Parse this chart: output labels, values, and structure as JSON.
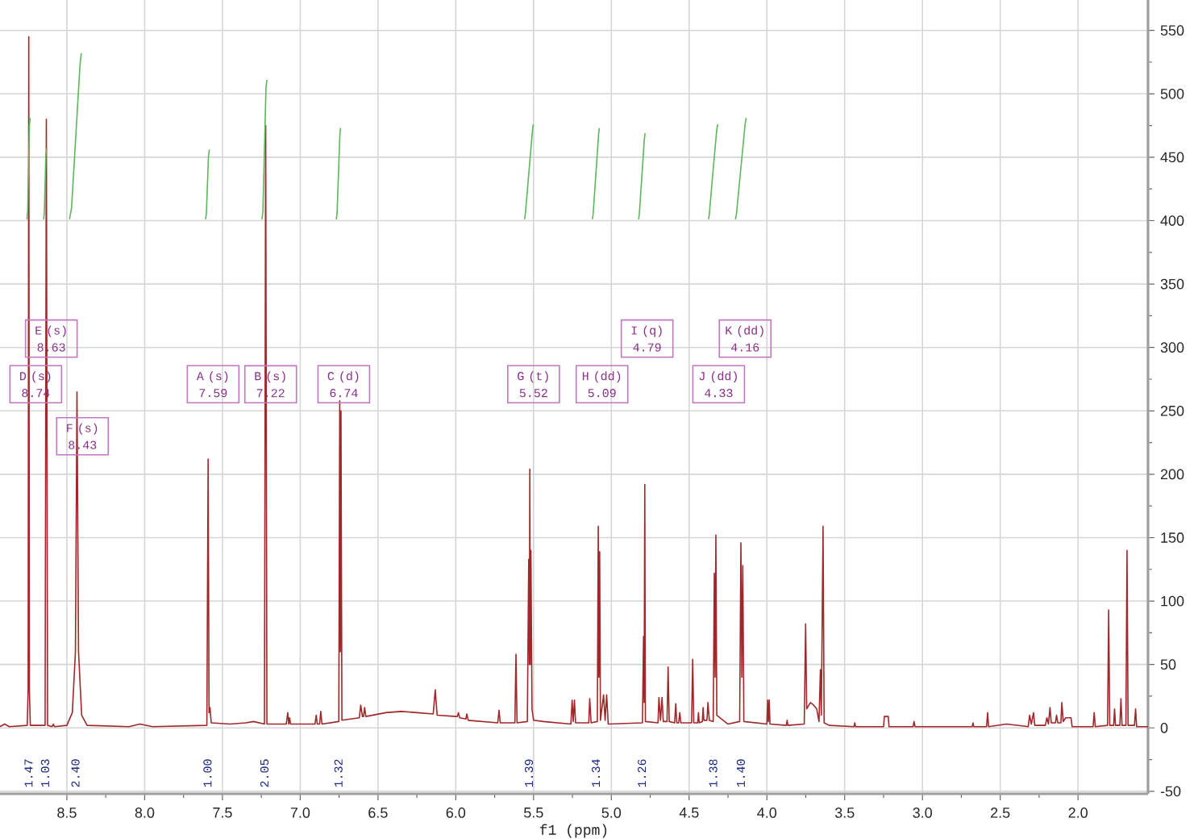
{
  "chart_data": {
    "type": "line",
    "xlabel": "f1 (ppm)",
    "xlim": [
      8.93,
      1.55
    ],
    "ylim": [
      -52,
      574
    ],
    "xticks": [
      8.5,
      {
        "value": 8.0,
        "label": "8.0"
      },
      7.5,
      {
        "value": 7.0,
        "label": "7.0"
      },
      6.5,
      {
        "value": 6.0,
        "label": "6.0"
      },
      5.5,
      {
        "value": 5.0,
        "label": "5.0"
      },
      4.5,
      {
        "value": 4.0,
        "label": "4.0"
      },
      3.5,
      {
        "value": 3.0,
        "label": "3.0"
      },
      2.5,
      {
        "value": 2.0,
        "label": "2.0"
      }
    ],
    "yticks": [
      -50,
      0,
      50,
      100,
      150,
      200,
      250,
      300,
      350,
      400,
      450,
      500,
      550
    ],
    "grid": true,
    "annotations": [
      {
        "text": "D (s) 8.74",
        "x": 8.7,
        "y": 271
      },
      {
        "text": "E (s) 8.63",
        "x": 8.6,
        "y": 307
      },
      {
        "text": "F (s) 8.43",
        "x": 8.4,
        "y": 230
      },
      {
        "text": "A (s) 7.59",
        "x": 7.56,
        "y": 271
      },
      {
        "text": "B (s) 7.22",
        "x": 7.19,
        "y": 271
      },
      {
        "text": "C (d) 6.74",
        "x": 6.72,
        "y": 271
      },
      {
        "text": "G (t) 5.52",
        "x": 5.5,
        "y": 271
      },
      {
        "text": "H (dd) 5.09",
        "x": 5.06,
        "y": 271
      },
      {
        "text": "I (q) 4.79",
        "x": 4.77,
        "y": 307
      },
      {
        "text": "J (dd) 4.33",
        "x": 4.31,
        "y": 271
      },
      {
        "text": "K (dd) 4.16",
        "x": 4.14,
        "y": 307
      },
      "1.47",
      "1.03",
      "2.40",
      "1.00",
      "2.05",
      "1.32",
      "1.39",
      "1.34",
      "1.26",
      "1.38",
      "1.40"
    ],
    "series": [
      {
        "color": "#a0282a",
        "x": [
          8.93,
          8.9,
          8.87,
          8.755,
          8.749,
          8.745,
          8.741,
          8.735,
          8.64,
          8.632,
          8.624,
          8.595,
          8.587,
          8.58,
          8.5,
          8.465,
          8.445,
          8.435,
          8.425,
          8.405,
          8.37,
          8.1,
          8.03,
          7.95,
          7.6,
          7.592,
          7.586,
          7.58,
          7.572,
          7.45,
          7.35,
          7.3,
          7.23,
          7.222,
          7.214,
          7.09,
          7.08,
          7.074,
          7.068,
          7.062,
          6.905,
          6.897,
          6.89,
          6.875,
          6.868,
          6.86,
          6.752,
          6.746,
          6.742,
          6.738,
          6.732,
          6.62,
          6.611,
          6.6,
          6.593,
          6.586,
          6.578,
          6.45,
          6.35,
          6.25,
          6.145,
          6.132,
          6.12,
          6.0,
          5.99,
          5.983,
          5.975,
          5.935,
          5.929,
          5.92,
          5.73,
          5.722,
          5.714,
          5.62,
          5.613,
          5.606,
          5.54,
          5.531,
          5.527,
          5.524,
          5.521,
          5.517,
          5.51,
          5.5,
          5.437,
          5.26,
          5.252,
          5.245,
          5.237,
          5.23,
          5.145,
          5.139,
          5.13,
          5.09,
          5.084,
          5.08,
          5.075,
          5.07,
          5.05,
          5.04,
          5.03,
          5.02,
          4.8,
          4.793,
          4.789,
          4.785,
          4.781,
          4.7,
          4.694,
          4.684,
          4.674,
          4.666,
          4.642,
          4.635,
          4.628,
          4.593,
          4.586,
          4.579,
          4.567,
          4.56,
          4.553,
          4.484,
          4.477,
          4.47,
          4.445,
          4.44,
          4.435,
          4.415,
          4.41,
          4.405,
          4.385,
          4.379,
          4.37,
          4.345,
          4.338,
          4.333,
          4.328,
          4.322,
          4.25,
          4.175,
          4.167,
          4.161,
          4.155,
          4.148,
          4.0,
          3.995,
          3.99,
          3.985,
          3.98,
          3.875,
          3.87,
          3.865,
          3.76,
          3.751,
          3.744,
          3.72,
          3.7,
          3.68,
          3.665,
          3.656,
          3.65,
          3.639,
          3.632,
          3.6,
          3.44,
          3.435,
          3.43,
          3.25,
          3.245,
          3.22,
          3.215,
          3.06,
          3.054,
          3.048,
          2.68,
          2.675,
          2.67,
          2.588,
          2.581,
          2.575,
          2.46,
          2.32,
          2.311,
          2.3,
          2.286,
          2.278,
          2.21,
          2.2,
          2.19,
          2.18,
          2.172,
          2.145,
          2.138,
          2.13,
          2.11,
          2.104,
          2.095,
          2.079,
          2.045,
          2.038,
          1.903,
          1.896,
          1.889,
          1.81,
          1.803,
          1.796,
          1.771,
          1.765,
          1.759,
          1.731,
          1.724,
          1.717,
          1.692,
          1.685,
          1.678,
          1.637,
          1.63,
          1.623,
          1.55
        ],
        "values": [
          1,
          3,
          1,
          2,
          30,
          545,
          30,
          2,
          2,
          480,
          2,
          1,
          3,
          1,
          2,
          12,
          60,
          265,
          60,
          10,
          2,
          1,
          3,
          1,
          2,
          212,
          12,
          16,
          4,
          3,
          4,
          5,
          3,
          475,
          3,
          3,
          12,
          3,
          8,
          3,
          3,
          10,
          3,
          3,
          13,
          3,
          5,
          258,
          60,
          250,
          6,
          8,
          18,
          9,
          9,
          16,
          9,
          12,
          13,
          12,
          11,
          30,
          10,
          9,
          9,
          12,
          8,
          7,
          11,
          6,
          4,
          14,
          4,
          4,
          58,
          4,
          5,
          133,
          50,
          204,
          50,
          140,
          15,
          6,
          5,
          3,
          22,
          5,
          22,
          4,
          4,
          23,
          4,
          5,
          159,
          40,
          139,
          6,
          26,
          6,
          26,
          3,
          4,
          72,
          20,
          192,
          5,
          4,
          24,
          6,
          24,
          5,
          5,
          48,
          5,
          4,
          19,
          4,
          4,
          12,
          4,
          4,
          54,
          4,
          4,
          12,
          4,
          5,
          16,
          6,
          6,
          20,
          6,
          5,
          122,
          40,
          152,
          10,
          3,
          5,
          146,
          40,
          128,
          5,
          3,
          22,
          5,
          22,
          3,
          2,
          6,
          2,
          3,
          82,
          15,
          20,
          18,
          15,
          5,
          46,
          10,
          159,
          4,
          2,
          1,
          4,
          1,
          1,
          9,
          9,
          1,
          1,
          5,
          1,
          1,
          4,
          1,
          1,
          12,
          1,
          3,
          1,
          10,
          3,
          12,
          2,
          2,
          8,
          3,
          16,
          4,
          4,
          10,
          4,
          4,
          20,
          5,
          8,
          8,
          1,
          1,
          12,
          1,
          2,
          93,
          2,
          2,
          15,
          2,
          2,
          23,
          2,
          2,
          140,
          2,
          2,
          15,
          1,
          1
        ]
      },
      {
        "color": "#5cb85c",
        "x": [
          8.757,
          8.752,
          8.741,
          8.736
        ],
        "values": [
          401,
          408,
          475,
          481
        ]
      },
      {
        "color": "#5cb85c",
        "x": [
          8.65,
          8.645,
          8.635,
          8.63
        ],
        "values": [
          401,
          406,
          452,
          457
        ]
      },
      {
        "color": "#5cb85c",
        "x": [
          8.483,
          8.47,
          8.415,
          8.407
        ],
        "values": [
          401,
          410,
          524,
          532
        ]
      },
      {
        "color": "#5cb85c",
        "x": [
          7.608,
          7.603,
          7.59,
          7.584
        ],
        "values": [
          401,
          406,
          450,
          456
        ]
      },
      {
        "color": "#5cb85c",
        "x": [
          7.246,
          7.24,
          7.22,
          7.214
        ],
        "values": [
          401,
          407,
          505,
          511
        ]
      },
      {
        "color": "#5cb85c",
        "x": [
          6.768,
          6.763,
          6.745,
          6.741
        ],
        "values": [
          401,
          406,
          468,
          473
        ]
      },
      {
        "color": "#5cb85c",
        "x": [
          5.558,
          5.553,
          5.507,
          5.502
        ],
        "values": [
          401,
          405,
          471,
          476
        ]
      },
      {
        "color": "#5cb85c",
        "x": [
          5.122,
          5.117,
          5.082,
          5.077
        ],
        "values": [
          401,
          405,
          468,
          473
        ]
      },
      {
        "color": "#5cb85c",
        "x": [
          4.825,
          4.82,
          4.788,
          4.783
        ],
        "values": [
          401,
          405,
          464,
          469
        ]
      },
      {
        "color": "#5cb85c",
        "x": [
          4.375,
          4.37,
          4.35,
          4.322,
          4.316
        ],
        "values": [
          401,
          405,
          434,
          472,
          476
        ]
      },
      {
        "color": "#5cb85c",
        "x": [
          4.202,
          4.196,
          4.14,
          4.133
        ],
        "values": [
          401,
          405,
          476,
          481
        ]
      }
    ]
  }
}
